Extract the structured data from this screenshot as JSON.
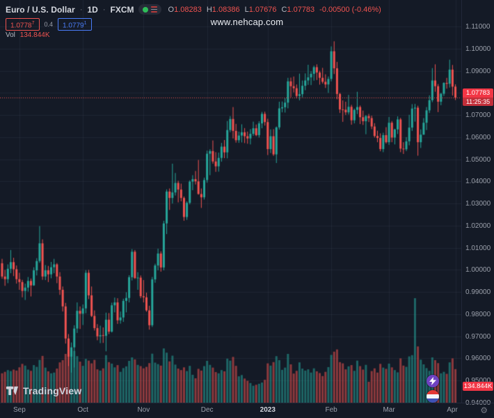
{
  "header": {
    "symbol": "Euro / U.S. Dollar",
    "sep": "·",
    "interval": "1D",
    "exchange": "FXCM",
    "ohlc": {
      "o_label": "O",
      "o": "1.08283",
      "h_label": "H",
      "h": "1.08386",
      "l_label": "L",
      "l": "1.07676",
      "c_label": "C",
      "c": "1.07783",
      "change": "-0.00500 (-0.46%)"
    },
    "bid": "1.0778",
    "bid_sup": "7",
    "spread": "0.4",
    "ask": "1.0779",
    "ask_sup": "1",
    "vol_label": "Vol",
    "vol_value": "134.844K"
  },
  "watermark": "www.nehcap.com",
  "badges": {
    "price": "1.07783",
    "countdown": "11:25:35",
    "volume": "134.844K"
  },
  "footer": {
    "logo_text": "TradingView",
    "gear": "⚙"
  },
  "theme": {
    "bg": "#141a26",
    "up": "#26a69a",
    "down": "#ef5350",
    "up_vol": "rgba(38,166,154,0.55)",
    "down_vol": "rgba(239,83,80,0.55)",
    "grid": "rgba(125,135,160,0.10)",
    "badge_red": "#f23645",
    "axis_text": "#9ba0ab",
    "ask_blue": "#4a7df9"
  },
  "chart_data": {
    "type": "candlestick",
    "title": "Euro / U.S. Dollar · 1D · FXCM",
    "symbol": "EUR/USD",
    "interval": "1D",
    "exchange": "FXCM",
    "current_price": 1.07783,
    "current_volume_k": 134.844,
    "y_axis": {
      "min": 0.94,
      "max": 1.11,
      "tick_step": 0.01,
      "labels": [
        "1.11000",
        "1.10000",
        "1.09000",
        "1.08000",
        "1.07000",
        "1.06000",
        "1.05000",
        "1.04000",
        "1.03000",
        "1.02000",
        "1.01000",
        "1.00000",
        "0.99000",
        "0.98000",
        "0.97000",
        "0.96000",
        "0.95000",
        "0.94000"
      ]
    },
    "x_axis": {
      "labels": [
        {
          "text": "Sep",
          "index": 6
        },
        {
          "text": "Oct",
          "index": 28
        },
        {
          "text": "Nov",
          "index": 49
        },
        {
          "text": "Dec",
          "index": 71
        },
        {
          "text": "2023",
          "index": 92,
          "year": true
        },
        {
          "text": "Feb",
          "index": 114
        },
        {
          "text": "Mar",
          "index": 134
        },
        {
          "text": "Apr",
          "index": 157
        }
      ]
    },
    "candle_format": [
      "open",
      "high",
      "low",
      "close",
      "volume_k"
    ],
    "candles": [
      [
        1.003,
        1.005,
        0.996,
        0.997,
        118
      ],
      [
        0.997,
        1.0,
        0.9928,
        0.9958,
        124
      ],
      [
        0.9958,
        1.0025,
        0.994,
        1.0005,
        131
      ],
      [
        1.0005,
        1.009,
        0.9985,
        1.0035,
        127
      ],
      [
        1.0035,
        1.0055,
        0.9972,
        1.0003,
        133
      ],
      [
        1.0003,
        1.002,
        0.9938,
        0.9958,
        129
      ],
      [
        0.9958,
        0.9987,
        0.991,
        0.9945,
        142
      ],
      [
        0.9945,
        0.9955,
        0.9876,
        0.9905,
        156
      ],
      [
        0.9905,
        0.9938,
        0.9864,
        0.992,
        149
      ],
      [
        0.992,
        0.9968,
        0.9902,
        0.995,
        133
      ],
      [
        0.995,
        0.9961,
        0.988,
        0.993,
        128
      ],
      [
        0.993,
        1.0012,
        0.9928,
        0.9998,
        151
      ],
      [
        0.9998,
        1.0053,
        0.9975,
        1.004,
        144
      ],
      [
        1.004,
        1.0198,
        1.0032,
        1.012,
        172
      ],
      [
        1.012,
        1.0138,
        0.9955,
        0.997,
        188
      ],
      [
        0.997,
        1.0022,
        0.9954,
        0.9998,
        141
      ],
      [
        0.9998,
        1.0018,
        0.9945,
        0.998,
        126
      ],
      [
        0.998,
        1.0036,
        0.9962,
        1.0012,
        118
      ],
      [
        1.0012,
        1.005,
        0.9985,
        1.0025,
        121
      ],
      [
        1.0025,
        1.0031,
        0.994,
        0.997,
        137
      ],
      [
        0.997,
        0.999,
        0.9887,
        0.991,
        162
      ],
      [
        0.991,
        0.9925,
        0.9812,
        0.9835,
        171
      ],
      [
        0.9835,
        0.9851,
        0.9667,
        0.969,
        196
      ],
      [
        0.969,
        0.971,
        0.9565,
        0.9608,
        204
      ],
      [
        0.9608,
        0.9672,
        0.9536,
        0.965,
        212
      ],
      [
        0.965,
        0.975,
        0.9559,
        0.9735,
        208
      ],
      [
        0.9735,
        0.9853,
        0.9715,
        0.9815,
        187
      ],
      [
        0.9815,
        0.9835,
        0.9733,
        0.9802,
        165
      ],
      [
        0.9802,
        0.9844,
        0.9751,
        0.9826,
        148
      ],
      [
        0.9826,
        0.9999,
        0.9804,
        0.9987,
        176
      ],
      [
        0.9987,
        1.0,
        0.9868,
        0.9885,
        169
      ],
      [
        0.9885,
        0.9925,
        0.9787,
        0.9792,
        158
      ],
      [
        0.9792,
        0.9817,
        0.9726,
        0.9737,
        172
      ],
      [
        0.9737,
        0.9755,
        0.9682,
        0.97,
        134
      ],
      [
        0.97,
        0.9748,
        0.9669,
        0.9705,
        129
      ],
      [
        0.9705,
        0.974,
        0.967,
        0.9702,
        138
      ],
      [
        0.9702,
        0.9807,
        0.9632,
        0.9775,
        191
      ],
      [
        0.9775,
        0.9805,
        0.971,
        0.9721,
        163
      ],
      [
        0.9721,
        0.9852,
        0.9717,
        0.984,
        157
      ],
      [
        0.984,
        0.9875,
        0.9808,
        0.9853,
        142
      ],
      [
        0.9853,
        0.9872,
        0.9756,
        0.9772,
        151
      ],
      [
        0.9772,
        0.9812,
        0.9757,
        0.9785,
        124
      ],
      [
        0.9785,
        0.987,
        0.9765,
        0.986,
        139
      ],
      [
        0.986,
        0.9899,
        0.9808,
        0.9873,
        146
      ],
      [
        0.9873,
        0.9976,
        0.9853,
        0.9967,
        168
      ],
      [
        0.9967,
        1.0094,
        0.9952,
        1.0082,
        182
      ],
      [
        1.0082,
        1.009,
        0.9959,
        0.9963,
        174
      ],
      [
        0.9963,
        0.999,
        0.991,
        0.9965,
        152
      ],
      [
        0.9965,
        0.9975,
        0.9872,
        0.9881,
        147
      ],
      [
        0.9881,
        0.9954,
        0.9853,
        0.9876,
        138
      ],
      [
        0.9876,
        0.9897,
        0.9811,
        0.9817,
        144
      ],
      [
        0.9817,
        0.9838,
        0.973,
        0.975,
        159
      ],
      [
        0.975,
        0.9968,
        0.9742,
        0.9957,
        197
      ],
      [
        0.9957,
        1.0028,
        0.9942,
        1.002,
        161
      ],
      [
        1.002,
        1.0096,
        0.9998,
        1.0074,
        155
      ],
      [
        1.0074,
        1.0084,
        0.9992,
        1.0011,
        149
      ],
      [
        1.0011,
        1.0222,
        0.9998,
        1.021,
        218
      ],
      [
        1.021,
        1.0364,
        1.0162,
        1.0354,
        201
      ],
      [
        1.0354,
        1.0368,
        1.0271,
        1.0325,
        166
      ],
      [
        1.0325,
        1.048,
        1.03,
        1.035,
        189
      ],
      [
        1.035,
        1.0438,
        1.0336,
        1.0393,
        153
      ],
      [
        1.0393,
        1.0403,
        1.0305,
        1.0363,
        137
      ],
      [
        1.0363,
        1.039,
        1.031,
        1.0325,
        131
      ],
      [
        1.0325,
        1.0332,
        1.0222,
        1.0239,
        142
      ],
      [
        1.0239,
        1.031,
        1.0226,
        1.0303,
        127
      ],
      [
        1.0303,
        1.0405,
        1.0296,
        1.0399,
        148
      ],
      [
        1.0399,
        1.0428,
        1.036,
        1.041,
        112
      ],
      [
        1.041,
        1.0447,
        1.0386,
        1.04,
        98
      ],
      [
        1.04,
        1.0497,
        1.034,
        1.0343,
        136
      ],
      [
        1.0343,
        1.0368,
        1.028,
        1.0328,
        129
      ],
      [
        1.0328,
        1.0417,
        1.0318,
        1.0406,
        147
      ],
      [
        1.0406,
        1.0539,
        1.0394,
        1.0525,
        168
      ],
      [
        1.0525,
        1.0545,
        1.0428,
        1.0537,
        152
      ],
      [
        1.0537,
        1.0585,
        1.048,
        1.049,
        141
      ],
      [
        1.049,
        1.0532,
        1.0443,
        1.0468,
        123
      ],
      [
        1.0468,
        1.053,
        1.0444,
        1.0506,
        118
      ],
      [
        1.0506,
        1.0574,
        1.0489,
        1.0557,
        131
      ],
      [
        1.0557,
        1.0587,
        1.0505,
        1.0531,
        126
      ],
      [
        1.0531,
        1.0673,
        1.0504,
        1.0632,
        177
      ],
      [
        1.0632,
        1.0695,
        1.0622,
        1.0682,
        169
      ],
      [
        1.0682,
        1.0736,
        1.0594,
        1.0628,
        184
      ],
      [
        1.0628,
        1.066,
        1.0575,
        1.0586,
        148
      ],
      [
        1.0586,
        1.0625,
        1.0574,
        1.0607,
        106
      ],
      [
        1.0607,
        1.0658,
        1.0576,
        1.0622,
        111
      ],
      [
        1.0622,
        1.0641,
        1.0573,
        1.0604,
        97
      ],
      [
        1.0604,
        1.0625,
        1.057,
        1.0594,
        88
      ],
      [
        1.0594,
        1.0636,
        1.0567,
        1.0615,
        79
      ],
      [
        1.0615,
        1.067,
        1.0606,
        1.064,
        68
      ],
      [
        1.064,
        1.0657,
        1.0604,
        1.0609,
        72
      ],
      [
        1.0609,
        1.0672,
        1.0598,
        1.0662,
        76
      ],
      [
        1.0662,
        1.0714,
        1.064,
        1.0705,
        81
      ],
      [
        1.0705,
        1.0715,
        1.0652,
        1.0668,
        92
      ],
      [
        1.0668,
        1.0683,
        1.0519,
        1.0546,
        158
      ],
      [
        1.0546,
        1.0635,
        1.0528,
        1.0604,
        149
      ],
      [
        1.0604,
        1.0636,
        1.0515,
        1.0522,
        163
      ],
      [
        1.0522,
        1.0648,
        1.0483,
        1.0644,
        187
      ],
      [
        1.0644,
        1.076,
        1.0634,
        1.073,
        171
      ],
      [
        1.073,
        1.0761,
        1.0712,
        1.0735,
        132
      ],
      [
        1.0735,
        1.0776,
        1.0711,
        1.0756,
        141
      ],
      [
        1.0756,
        1.0868,
        1.073,
        1.0852,
        196
      ],
      [
        1.0852,
        1.0869,
        1.078,
        1.083,
        154
      ],
      [
        1.083,
        1.0874,
        1.0802,
        1.0821,
        117
      ],
      [
        1.0821,
        1.0838,
        1.0775,
        1.0786,
        128
      ],
      [
        1.0786,
        1.0887,
        1.0766,
        1.0794,
        162
      ],
      [
        1.0794,
        1.0856,
        1.078,
        1.0832,
        137
      ],
      [
        1.0832,
        1.0888,
        1.0812,
        1.0856,
        129
      ],
      [
        1.0856,
        1.0927,
        1.0836,
        1.087,
        134
      ],
      [
        1.087,
        1.0898,
        1.0835,
        1.0886,
        121
      ],
      [
        1.0886,
        1.0923,
        1.0855,
        1.0916,
        138
      ],
      [
        1.0916,
        1.0929,
        1.0858,
        1.0892,
        126
      ],
      [
        1.0892,
        1.09,
        1.0837,
        1.0868,
        119
      ],
      [
        1.0868,
        1.0913,
        1.0842,
        1.085,
        107
      ],
      [
        1.085,
        1.0884,
        1.0822,
        1.0838,
        124
      ],
      [
        1.0838,
        1.0874,
        1.08,
        1.0863,
        143
      ],
      [
        1.0863,
        1.101,
        1.0852,
        1.0988,
        192
      ],
      [
        1.0988,
        1.1033,
        1.0885,
        1.0911,
        205
      ],
      [
        1.0911,
        1.094,
        1.0771,
        1.0795,
        214
      ],
      [
        1.0795,
        1.08,
        1.0709,
        1.0725,
        163
      ],
      [
        1.0725,
        1.0766,
        1.0669,
        1.0724,
        158
      ],
      [
        1.0724,
        1.076,
        1.07,
        1.0712,
        134
      ],
      [
        1.0712,
        1.0791,
        1.0702,
        1.0737,
        146
      ],
      [
        1.0737,
        1.0746,
        1.0656,
        1.0676,
        151
      ],
      [
        1.0676,
        1.0729,
        1.0662,
        1.0723,
        128
      ],
      [
        1.0723,
        1.0805,
        1.0704,
        1.0736,
        169
      ],
      [
        1.0736,
        1.0743,
        1.0659,
        1.069,
        147
      ],
      [
        1.069,
        1.072,
        1.0655,
        1.0672,
        133
      ],
      [
        1.0672,
        1.07,
        1.0613,
        1.0695,
        152
      ],
      [
        1.0695,
        1.0705,
        1.0668,
        1.0686,
        84
      ],
      [
        1.0686,
        1.0697,
        1.0636,
        1.0648,
        127
      ],
      [
        1.0648,
        1.0663,
        1.0598,
        1.0605,
        138
      ],
      [
        1.0605,
        1.0629,
        1.0577,
        1.0596,
        121
      ],
      [
        1.0596,
        1.0617,
        1.0536,
        1.0546,
        156
      ],
      [
        1.0546,
        1.062,
        1.0532,
        1.0609,
        141
      ],
      [
        1.0609,
        1.0645,
        1.0571,
        1.0577,
        136
      ],
      [
        1.0577,
        1.0691,
        1.0565,
        1.0665,
        157
      ],
      [
        1.0665,
        1.0673,
        1.0577,
        1.0598,
        142
      ],
      [
        1.0598,
        1.0638,
        1.0567,
        1.0635,
        131
      ],
      [
        1.0635,
        1.0694,
        1.0614,
        1.068,
        122
      ],
      [
        1.068,
        1.0687,
        1.0532,
        1.0548,
        178
      ],
      [
        1.0548,
        1.0577,
        1.0524,
        1.0545,
        149
      ],
      [
        1.0545,
        1.06,
        1.0537,
        1.0581,
        144
      ],
      [
        1.0581,
        1.0701,
        1.0563,
        1.0643,
        186
      ],
      [
        1.0643,
        1.0749,
        1.0628,
        1.0729,
        191
      ],
      [
        1.0729,
        1.075,
        1.067,
        1.0733,
        420
      ],
      [
        1.0733,
        1.0742,
        1.0516,
        1.0577,
        226
      ],
      [
        1.0577,
        1.0635,
        1.0551,
        1.0611,
        173
      ],
      [
        1.0611,
        1.0686,
        1.0611,
        1.0665,
        154
      ],
      [
        1.0665,
        1.0736,
        1.0632,
        1.0721,
        139
      ],
      [
        1.0721,
        1.0789,
        1.0709,
        1.0767,
        128
      ],
      [
        1.0767,
        1.0912,
        1.0758,
        1.0856,
        182
      ],
      [
        1.0856,
        1.0929,
        1.0805,
        1.083,
        171
      ],
      [
        1.083,
        1.084,
        1.0713,
        1.076,
        159
      ],
      [
        1.076,
        1.08,
        1.0744,
        1.0796,
        118
      ],
      [
        1.0796,
        1.0848,
        1.0786,
        1.0845,
        124
      ],
      [
        1.0845,
        1.0868,
        1.0819,
        1.0841,
        116
      ],
      [
        1.0841,
        1.095,
        1.0824,
        1.0905,
        162
      ],
      [
        1.0905,
        1.0926,
        1.0788,
        1.0828,
        178
      ],
      [
        1.08283,
        1.08386,
        1.07676,
        1.07783,
        134.844
      ]
    ]
  }
}
